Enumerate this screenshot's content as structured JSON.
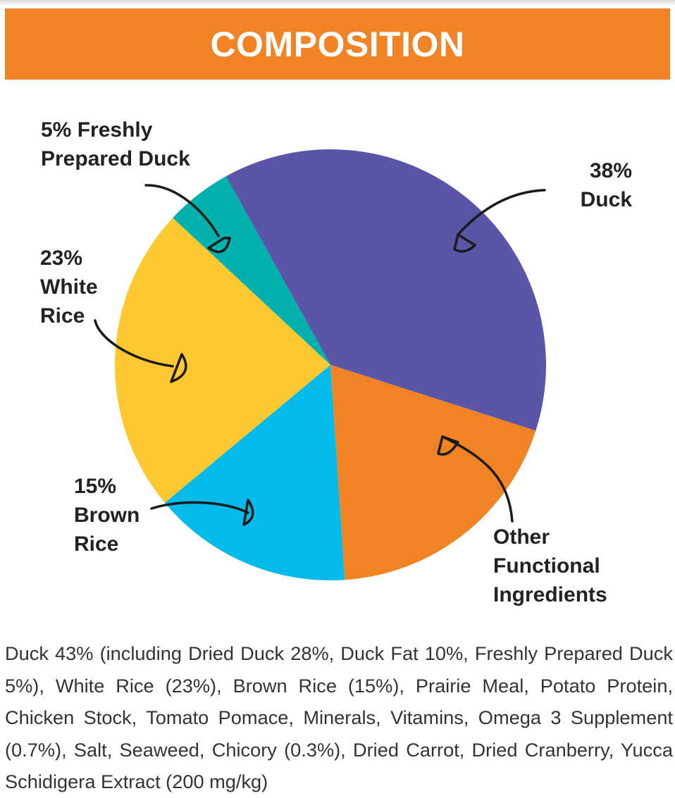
{
  "header": {
    "title": "COMPOSITION",
    "bg_color": "#f28324"
  },
  "chart_data": {
    "type": "pie",
    "title": "",
    "slices": [
      {
        "label": "38% Duck",
        "value": 38,
        "color": "#5a55a6"
      },
      {
        "label": "Other Functional Ingredients",
        "value": 19,
        "color": "#f28324"
      },
      {
        "label": "15% Brown Rice",
        "value": 15,
        "color": "#04bae8"
      },
      {
        "label": "23% White Rice",
        "value": 23,
        "color": "#fdc830"
      },
      {
        "label": "5% Freshly Prepared Duck",
        "value": 5,
        "color": "#00b1ad"
      }
    ],
    "labels": {
      "duck": [
        "38%",
        "Duck"
      ],
      "other": [
        "Other",
        "Functional",
        "Ingredients"
      ],
      "brown_rice": [
        "15%",
        "Brown",
        "Rice"
      ],
      "white_rice": [
        "23%",
        "White",
        "Rice"
      ],
      "fresh_duck": [
        "5% Freshly",
        "Prepared Duck"
      ]
    }
  },
  "description": "Duck 43% (including Dried Duck 28%, Duck Fat 10%, Freshly Prepared Duck 5%), White Rice (23%), Brown Rice (15%), Prairie Meal, Potato Protein, Chicken Stock, Tomato Pomace, Minerals, Vitamins, Omega 3 Supplement (0.7%), Salt, Seaweed, Chicory (0.3%), Dried Carrot, Dried Cranberry, Yucca Schidigera Extract (200 mg/kg)"
}
